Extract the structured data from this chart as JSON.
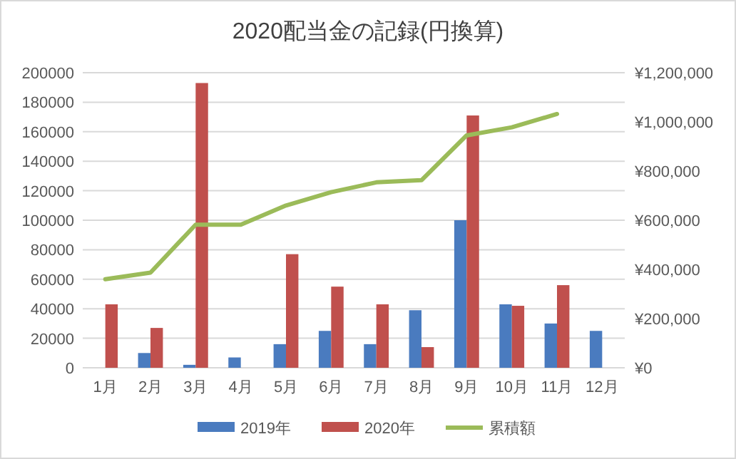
{
  "chart_data": {
    "type": "bar",
    "title": "2020配当金の記録(円換算)",
    "categories": [
      "1月",
      "2月",
      "3月",
      "4月",
      "5月",
      "6月",
      "7月",
      "8月",
      "9月",
      "10月",
      "11月",
      "12月"
    ],
    "series": [
      {
        "name": "2019年",
        "color": "#4a7bbf",
        "values": [
          null,
          10000,
          2000,
          7000,
          16000,
          25000,
          16000,
          39000,
          100000,
          43000,
          30000,
          25000
        ]
      },
      {
        "name": "2020年",
        "color": "#c0504d",
        "values": [
          43000,
          27000,
          193000,
          null,
          77000,
          55000,
          43000,
          14000,
          171000,
          42000,
          56000,
          null
        ]
      },
      {
        "name": "累積額",
        "type": "line",
        "axis": "y2",
        "color": "#9bbb59",
        "values": [
          360000,
          387000,
          582000,
          582000,
          660000,
          714000,
          754000,
          763000,
          945000,
          978000,
          1032000,
          null
        ]
      }
    ],
    "ylim": [
      0,
      200000
    ],
    "yticks": [
      0,
      20000,
      40000,
      60000,
      80000,
      100000,
      120000,
      140000,
      160000,
      180000,
      200000
    ],
    "y2lim": [
      0,
      1200000
    ],
    "y2ticks": [
      {
        "value": 0,
        "label": "¥0"
      },
      {
        "value": 200000,
        "label": "¥200,000"
      },
      {
        "value": 400000,
        "label": "¥400,000"
      },
      {
        "value": 600000,
        "label": "¥600,000"
      },
      {
        "value": 800000,
        "label": "¥800,000"
      },
      {
        "value": 1000000,
        "label": "¥1,000,000"
      },
      {
        "value": 1200000,
        "label": "¥1,200,000"
      }
    ],
    "grid": "y",
    "legend": "bottom",
    "marker": "none"
  }
}
